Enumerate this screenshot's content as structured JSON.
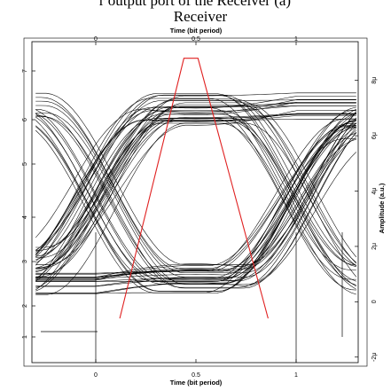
{
  "header": {
    "partial_caption": "r output port of the Receiver (a)",
    "title": "Receiver"
  },
  "chart_data": {
    "type": "line",
    "title": "Receiver",
    "xlabel_top": "Time (bit period)",
    "xlabel_bottom": "Time (bit period)",
    "ylabel_right": "Amplitude (a.u.)",
    "xlim": [
      0,
      1
    ],
    "x_ticks": [
      "0",
      "0.5",
      "1"
    ],
    "ylim": [
      -2.2,
      9.4
    ],
    "y_ticks_right": [
      "-2μ",
      "0",
      "2μ",
      "4μ",
      "6μ",
      "8μ"
    ],
    "y_ticks_left": [
      "1",
      "2",
      "3",
      "4",
      "5",
      "6",
      "7"
    ],
    "grid": false,
    "eye": {
      "level_low": 0.8,
      "level_high": 7.0,
      "crossing_left_x": 0.0,
      "crossing_right_x": 1.0,
      "crossing_level": 3.6,
      "peak_x": 0.47,
      "trace_count": 64
    },
    "mask": {
      "color": "#e02020",
      "points": [
        [
          0.12,
          -0.6
        ],
        [
          0.44,
          8.8
        ],
        [
          0.51,
          8.8
        ],
        [
          0.86,
          -0.6
        ]
      ]
    },
    "trace_color": "#000000"
  }
}
